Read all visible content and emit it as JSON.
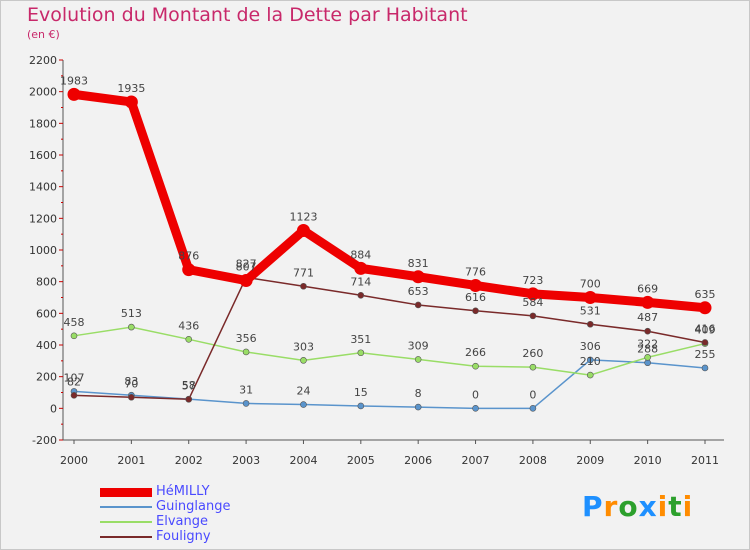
{
  "title": "Evolution du Montant de la Dette par Habitant",
  "subtitle": "(en €)",
  "logo": {
    "letters": [
      "P",
      "r",
      "o",
      "x",
      "i",
      "t",
      "i"
    ],
    "colors": [
      "#1e90ff",
      "#ff8c00",
      "#2ca02c",
      "#1e90ff",
      "#ff8c00",
      "#2ca02c",
      "#ff8c00"
    ]
  },
  "chart_data": {
    "type": "line",
    "title": "Evolution du Montant de la Dette par Habitant",
    "ylabel": "(en €)",
    "xlabel": "",
    "ylim": [
      -200,
      2200
    ],
    "yticks": [
      -200,
      0,
      200,
      400,
      600,
      800,
      1000,
      1200,
      1400,
      1600,
      1800,
      2000,
      2200
    ],
    "x": [
      "2000",
      "2001",
      "2002",
      "2003",
      "2004",
      "2005",
      "2006",
      "2007",
      "2008",
      "2009",
      "2010",
      "2011"
    ],
    "grid": false,
    "legend_position": "bottom-left",
    "series": [
      {
        "name": "HéMILLY",
        "color": "#ee0000",
        "width": 9,
        "values": [
          1983,
          1935,
          876,
          807,
          1123,
          884,
          831,
          776,
          723,
          700,
          669,
          635
        ]
      },
      {
        "name": "Guinglange",
        "color": "#5a94cc",
        "width": 1.5,
        "values": [
          107,
          83,
          58,
          31,
          24,
          15,
          8,
          0,
          0,
          306,
          288,
          255
        ]
      },
      {
        "name": "Elvange",
        "color": "#99dd66",
        "width": 1.5,
        "values": [
          458,
          513,
          436,
          356,
          303,
          351,
          309,
          266,
          260,
          210,
          322,
          409
        ]
      },
      {
        "name": "Fouligny",
        "color": "#7a2a2a",
        "width": 1.5,
        "values": [
          82,
          70,
          57,
          827,
          771,
          714,
          653,
          616,
          584,
          531,
          487,
          416
        ]
      }
    ]
  }
}
